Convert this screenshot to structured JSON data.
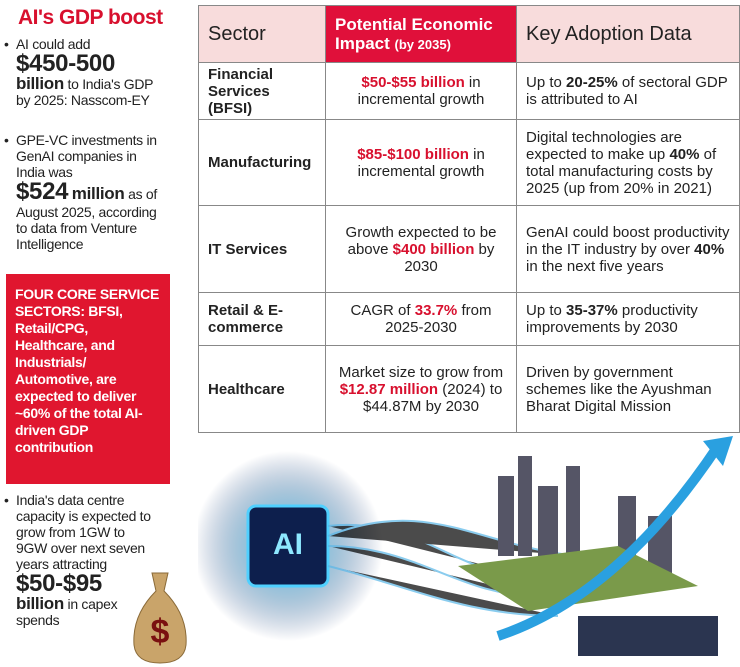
{
  "sidebar": {
    "title": "AI's GDP boost",
    "bullets": [
      [
        "AI could add",
        "$450-500",
        "billion",
        "to India's GDP by 2025: Nasscom-EY"
      ],
      [
        "GPE-VC investments in GenAI companies in India was",
        "$524",
        "million",
        "as of August 2025, according to data from Venture Intelligence"
      ],
      [
        "India's data centre capacity is expected to grow from 1GW to 9GW over next seven years attracting",
        "$50-$95",
        "billion",
        "in capex spends"
      ]
    ],
    "callout": "FOUR CORE SERVICE SECTORS: BFSI, Retail/CPG, Healthcare, and Industrials/ Automotive, are expected to deliver ~60% of the total AI-driven GDP contribution"
  },
  "table": {
    "header": {
      "sector": "Sector",
      "impact": "Potential Economic Impact",
      "impact_note": "(by 2035)",
      "adoption": "Key Adoption Data"
    },
    "rows": [
      {
        "sector": "Financial Services (BFSI)",
        "impact": [
          "$50-$55 billion",
          " in incremental growth"
        ],
        "adoption": [
          "Up to ",
          "20-25%",
          " of sectoral GDP is attributed to AI"
        ]
      },
      {
        "sector": "Manufacturing",
        "impact": [
          "$85-$100 billion",
          " in incremental growth"
        ],
        "adoption": [
          "Digital technologies are expected to make up ",
          "40%",
          " of total manufacturing costs by 2025 (up from 20% in 2021)"
        ]
      },
      {
        "sector": "IT Services",
        "impact": [
          "Growth expected to be above ",
          "$400 billion",
          " by 2030"
        ],
        "adoption": [
          "GenAI could boost productivity in the IT industry by over ",
          "40%",
          " in the next five years"
        ]
      },
      {
        "sector": "Retail & E-commerce",
        "impact": [
          "CAGR of ",
          "33.7%",
          " from 2025-2030"
        ],
        "adoption": [
          "Up to ",
          "35-37%",
          " productivity improvements by 2030"
        ]
      },
      {
        "sector": "Healthcare",
        "impact": [
          "Market size to grow from ",
          "$12.87 million",
          " (2024) to $44.87M by 2030"
        ],
        "adoption": [
          "Driven by government schemes like the Ayushman Bharat Digital Mission"
        ]
      }
    ]
  }
}
